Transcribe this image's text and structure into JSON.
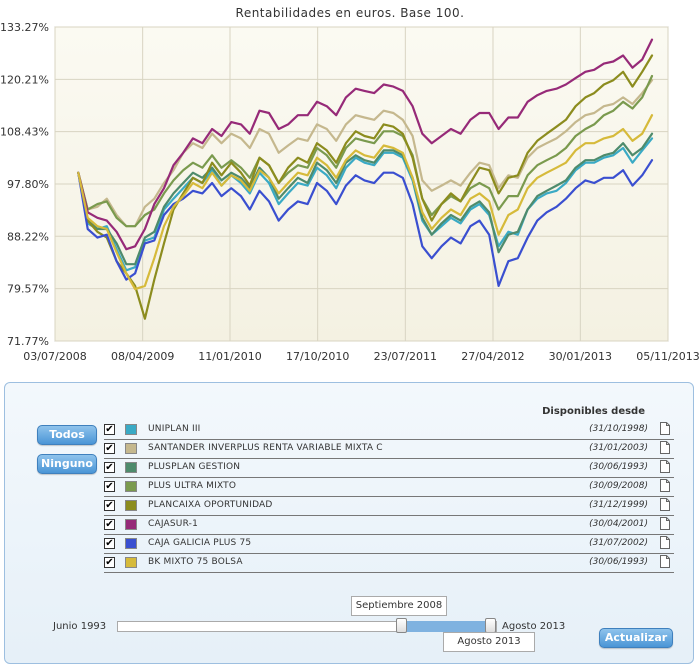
{
  "chart_data": {
    "type": "line",
    "title": "Rentabilidades en euros. Base 100.",
    "x_ticks": [
      "03/07/2008",
      "08/04/2009",
      "11/01/2010",
      "17/10/2010",
      "23/07/2011",
      "27/04/2012",
      "30/01/2013",
      "05/11/2013"
    ],
    "y_ticks": [
      "133.27%",
      "120.21%",
      "108.43%",
      "97.80%",
      "88.22%",
      "79.57%",
      "71.77%"
    ],
    "y_tick_values": [
      133.27,
      120.21,
      108.43,
      97.8,
      88.22,
      79.57,
      71.77
    ],
    "xlim": [
      "2008-07-03",
      "2013-11-05"
    ],
    "ylim": [
      71.77,
      133.27
    ],
    "grid": true,
    "legend": "panel-below",
    "x": [
      "2008-09",
      "2008-10",
      "2008-11",
      "2008-12",
      "2009-01",
      "2009-02",
      "2009-03",
      "2009-04",
      "2009-05",
      "2009-06",
      "2009-07",
      "2009-08",
      "2009-09",
      "2009-10",
      "2009-11",
      "2009-12",
      "2010-01",
      "2010-02",
      "2010-03",
      "2010-04",
      "2010-05",
      "2010-06",
      "2010-07",
      "2010-08",
      "2010-09",
      "2010-10",
      "2010-11",
      "2010-12",
      "2011-01",
      "2011-02",
      "2011-03",
      "2011-04",
      "2011-05",
      "2011-06",
      "2011-07",
      "2011-08",
      "2011-09",
      "2011-10",
      "2011-11",
      "2011-12",
      "2012-01",
      "2012-02",
      "2012-03",
      "2012-04",
      "2012-05",
      "2012-06",
      "2012-07",
      "2012-08",
      "2012-09",
      "2012-10",
      "2012-11",
      "2012-12",
      "2013-01",
      "2013-02",
      "2013-03",
      "2013-04",
      "2013-05",
      "2013-06",
      "2013-07",
      "2013-08",
      "2013-09"
    ],
    "series": [
      {
        "name": "UNIPLAN III",
        "color": "#3aaac5",
        "values": [
          100,
          90.5,
          89.5,
          90,
          86,
          82.5,
          83,
          87.5,
          88,
          93,
          95,
          97,
          99,
          98,
          100.5,
          97.5,
          99.5,
          98,
          96,
          100,
          98,
          94,
          96,
          98,
          97.5,
          101,
          99.5,
          97,
          101,
          103,
          102,
          101.5,
          104,
          104,
          103,
          98.5,
          91,
          88.5,
          90,
          91.5,
          90.5,
          93,
          94,
          92,
          86.5,
          89,
          88.5,
          93,
          95,
          96,
          96.5,
          98,
          100.5,
          102,
          102,
          103,
          103.5,
          105,
          102,
          104.5,
          107
        ]
      },
      {
        "name": "SANTANDER INVERPLUS RENTA VARIABLE MIXTA C",
        "color": "#c5b88e",
        "values": [
          100,
          93,
          93.5,
          95,
          92,
          90,
          90,
          93.5,
          95,
          98,
          100.5,
          104,
          106,
          105,
          108,
          106,
          108,
          107,
          105,
          109,
          108,
          104,
          105.5,
          107,
          106.5,
          110,
          109,
          106.5,
          110,
          112,
          111.5,
          111,
          113,
          112.5,
          111,
          107.5,
          98.5,
          96.5,
          97.5,
          98.5,
          97.5,
          100,
          102,
          101.5,
          97,
          99.5,
          99,
          103,
          105,
          106,
          107,
          108.5,
          110.5,
          112,
          112.5,
          114,
          114.5,
          116,
          114.5,
          117,
          120
        ]
      },
      {
        "name": "PLUSPLAN GESTION",
        "color": "#4e8b6c",
        "values": [
          100,
          91,
          89.5,
          89.5,
          87,
          83.5,
          83.5,
          88,
          89,
          93.5,
          96,
          98,
          100,
          99,
          101,
          98.5,
          100,
          99,
          97,
          101,
          99,
          95,
          97,
          99,
          98,
          102,
          100.5,
          98,
          102,
          103.5,
          102.5,
          102,
          104.5,
          104.5,
          103.5,
          99,
          91.5,
          88.5,
          90.5,
          92,
          91,
          93.5,
          94.5,
          92.5,
          85.5,
          88.5,
          89,
          93,
          95.5,
          96.5,
          97.5,
          98.5,
          101,
          102.5,
          102.5,
          103.5,
          104,
          106,
          103.5,
          105,
          108
        ]
      },
      {
        "name": "PLUS ULTRA MIXTO",
        "color": "#7a9a4e",
        "values": [
          100,
          93,
          94,
          94.5,
          91.5,
          90,
          90,
          92,
          93,
          96,
          98.5,
          100.5,
          102,
          101,
          103.5,
          101,
          102.5,
          101,
          99,
          103,
          101.5,
          98,
          100,
          101.5,
          101,
          105,
          103.5,
          101,
          105,
          107,
          106.5,
          106,
          108.5,
          108.5,
          107.5,
          103.5,
          95,
          92,
          94,
          95.5,
          94.5,
          97,
          98,
          97,
          93,
          95.5,
          95.5,
          99.5,
          101.5,
          102.5,
          103.5,
          105,
          107.5,
          109,
          110,
          112,
          113,
          115,
          113.5,
          116,
          121
        ]
      },
      {
        "name": "PLANCAIXA OPORTUNIDAD",
        "color": "#8c8c1e",
        "values": [
          100,
          91,
          89,
          88,
          84,
          82,
          80,
          75,
          81,
          87,
          93,
          96,
          99,
          98,
          102,
          99.5,
          102,
          100,
          97.5,
          103,
          101.5,
          98,
          101,
          103,
          102,
          106,
          104.5,
          102,
          106,
          108.5,
          107.5,
          107,
          110,
          109.5,
          108,
          103,
          95,
          91,
          94,
          96,
          94.5,
          98,
          101,
          100.5,
          96,
          99,
          99.5,
          104,
          106.5,
          108,
          109.5,
          111,
          114,
          116,
          117,
          119,
          120,
          122,
          118.5,
          122,
          126
        ]
      },
      {
        "name": "CAJASUR-1",
        "color": "#962a78",
        "values": [
          100,
          92.5,
          91.5,
          91,
          89,
          86,
          86.5,
          89.5,
          94,
          97,
          101.5,
          104,
          107,
          106,
          109,
          107.5,
          110.5,
          110,
          108,
          113,
          112.5,
          109,
          110,
          112,
          112,
          115,
          114,
          112,
          116,
          118,
          117.5,
          117,
          119,
          118.5,
          117.5,
          114,
          108,
          106,
          107.5,
          109,
          108,
          111,
          112.5,
          112.5,
          109,
          111.5,
          111.5,
          115,
          116.5,
          117.5,
          118,
          119,
          120.5,
          122,
          122.5,
          124,
          124.5,
          126,
          123,
          125,
          130
        ]
      },
      {
        "name": "CAJA GALICIA PLUS 75",
        "color": "#3a4fd0",
        "values": [
          100,
          89.5,
          88,
          88.5,
          84,
          81,
          82,
          87,
          87.5,
          92,
          94,
          95,
          96.5,
          96,
          98,
          95.5,
          97,
          95.5,
          93,
          96.5,
          94.5,
          91,
          93,
          94.5,
          94,
          98,
          96.5,
          94,
          97.5,
          99.5,
          98.5,
          98,
          100,
          100,
          99,
          94,
          86.5,
          84.5,
          86.5,
          88,
          87,
          90,
          91,
          88.5,
          80,
          84,
          84.5,
          88,
          91,
          92.5,
          93.5,
          95,
          97,
          98.5,
          98,
          99,
          99,
          100.5,
          97.5,
          99.5,
          102.5
        ]
      },
      {
        "name": "BK MIXTO 75 BOLSA",
        "color": "#d6ba3a",
        "values": [
          100,
          91.5,
          90,
          89.5,
          85.5,
          82,
          79.5,
          80,
          84.5,
          90,
          93.5,
          95.5,
          98,
          97,
          100,
          97.5,
          99.5,
          98.5,
          96.5,
          100.5,
          99,
          96,
          98,
          100,
          99.5,
          103,
          101.5,
          99,
          102.5,
          104.5,
          103.5,
          103,
          105.5,
          105,
          104,
          99,
          92.5,
          89.5,
          91.5,
          93,
          92,
          95,
          96,
          94.5,
          88.5,
          92,
          93,
          97,
          99,
          100,
          101,
          102,
          104.5,
          106,
          106,
          107,
          107.5,
          109,
          106.5,
          108,
          112
        ]
      }
    ]
  },
  "panel": {
    "buttons": {
      "all": "Todos",
      "none": "Ninguno",
      "update": "Actualizar"
    },
    "available_header": "Disponibles desde",
    "funds": [
      {
        "name": "UNIPLAN III",
        "date": "(31/10/1998)",
        "color": "#3aaac5",
        "checked": true
      },
      {
        "name": "SANTANDER INVERPLUS RENTA VARIABLE MIXTA C",
        "date": "(31/01/2003)",
        "color": "#c5b88e",
        "checked": true
      },
      {
        "name": "PLUSPLAN GESTION",
        "date": "(30/06/1993)",
        "color": "#4e8b6c",
        "checked": true
      },
      {
        "name": "PLUS ULTRA MIXTO",
        "date": "(30/09/2008)",
        "color": "#7a9a4e",
        "checked": true
      },
      {
        "name": "PLANCAIXA OPORTUNIDAD",
        "date": "(31/12/1999)",
        "color": "#8c8c1e",
        "checked": true
      },
      {
        "name": "CAJASUR-1",
        "date": "(30/04/2001)",
        "color": "#962a78",
        "checked": true
      },
      {
        "name": "CAJA GALICIA PLUS 75",
        "date": "(31/07/2002)",
        "color": "#3a4fd0",
        "checked": true
      },
      {
        "name": "BK MIXTO 75 BOLSA",
        "date": "(30/06/1993)",
        "color": "#d6ba3a",
        "checked": true
      }
    ],
    "checkmark": "✔",
    "slider": {
      "min_label": "Junio 1993",
      "max_label": "Agosto 2013",
      "start_label": "Septiembre 2008",
      "end_label": "Agosto 2013"
    }
  }
}
